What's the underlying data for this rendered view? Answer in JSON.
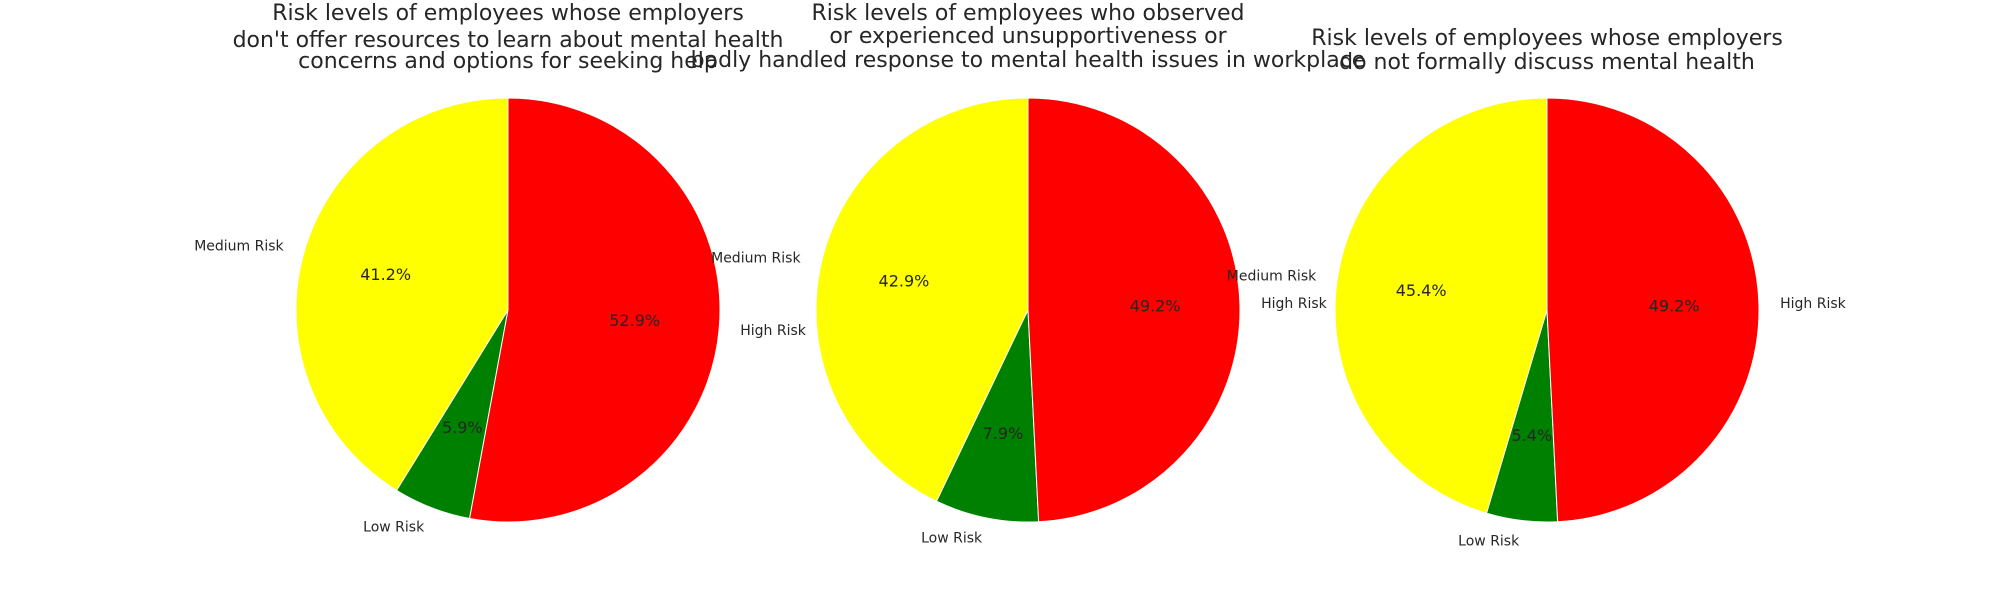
{
  "chart_data": [
    {
      "type": "pie",
      "title_lines": [
        "Risk levels of employees whose employers",
        "don't offer resources to learn about mental health",
        "concerns and options for seeking help"
      ],
      "start_angle": 90,
      "direction": "counterclockwise",
      "slices": [
        {
          "label": "Medium Risk",
          "value": 41.2,
          "pct_label": "41.2%",
          "color": "#ffff00"
        },
        {
          "label": "Low Risk",
          "value": 5.9,
          "pct_label": "5.9%",
          "color": "#008000"
        },
        {
          "label": "High Risk",
          "value": 52.9,
          "pct_label": "52.9%",
          "color": "#ff0000"
        }
      ]
    },
    {
      "type": "pie",
      "title_lines": [
        "Risk levels of employees who observed",
        "or experienced unsupportiveness or",
        "badly handled response to mental health issues in workplace"
      ],
      "start_angle": 90,
      "direction": "counterclockwise",
      "slices": [
        {
          "label": "Medium Risk",
          "value": 42.9,
          "pct_label": "42.9%",
          "color": "#ffff00"
        },
        {
          "label": "Low Risk",
          "value": 7.9,
          "pct_label": "7.9%",
          "color": "#008000"
        },
        {
          "label": "High Risk",
          "value": 49.2,
          "pct_label": "49.2%",
          "color": "#ff0000"
        }
      ]
    },
    {
      "type": "pie",
      "title_lines": [
        "Risk levels of employees whose employers",
        "do not formally discuss mental health"
      ],
      "start_angle": 90,
      "direction": "counterclockwise",
      "slices": [
        {
          "label": "Medium Risk",
          "value": 45.4,
          "pct_label": "45.4%",
          "color": "#ffff00"
        },
        {
          "label": "Low Risk",
          "value": 5.4,
          "pct_label": "5.4%",
          "color": "#008000"
        },
        {
          "label": "High Risk",
          "value": 49.2,
          "pct_label": "49.2%",
          "color": "#ff0000"
        }
      ]
    }
  ]
}
